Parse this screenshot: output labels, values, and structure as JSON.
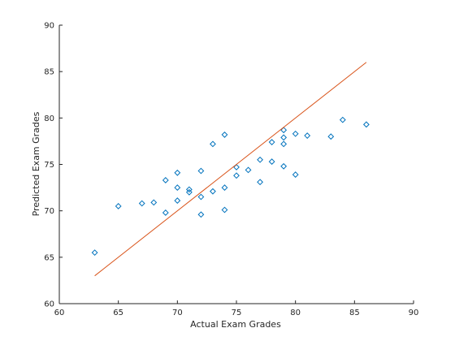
{
  "chart_data": {
    "type": "scatter",
    "title": "",
    "xlabel": "Actual Exam Grades",
    "ylabel": "Predicted Exam Grades",
    "xlim": [
      60,
      90
    ],
    "ylim": [
      60,
      90
    ],
    "xticks": [
      60,
      65,
      70,
      75,
      80,
      85,
      90
    ],
    "yticks": [
      60,
      65,
      70,
      75,
      80,
      85,
      90
    ],
    "grid": false,
    "legend": null,
    "colors": {
      "marker": "#0072BD",
      "line": "#D95319",
      "axis": "#262626"
    },
    "series": [
      {
        "kind": "scatter",
        "marker": "diamond",
        "points": [
          {
            "x": 63,
            "y": 65.5
          },
          {
            "x": 65,
            "y": 70.5
          },
          {
            "x": 67,
            "y": 70.8
          },
          {
            "x": 68,
            "y": 70.9
          },
          {
            "x": 69,
            "y": 73.3
          },
          {
            "x": 69,
            "y": 69.8
          },
          {
            "x": 70,
            "y": 74.1
          },
          {
            "x": 70,
            "y": 72.5
          },
          {
            "x": 70,
            "y": 71.1
          },
          {
            "x": 71,
            "y": 72.3
          },
          {
            "x": 71,
            "y": 72.0
          },
          {
            "x": 72,
            "y": 74.3
          },
          {
            "x": 72,
            "y": 71.5
          },
          {
            "x": 72,
            "y": 69.6
          },
          {
            "x": 73,
            "y": 77.2
          },
          {
            "x": 73,
            "y": 72.1
          },
          {
            "x": 74,
            "y": 78.2
          },
          {
            "x": 74,
            "y": 72.5
          },
          {
            "x": 74,
            "y": 70.1
          },
          {
            "x": 75,
            "y": 74.7
          },
          {
            "x": 75,
            "y": 73.8
          },
          {
            "x": 76,
            "y": 74.4
          },
          {
            "x": 77,
            "y": 75.5
          },
          {
            "x": 77,
            "y": 73.1
          },
          {
            "x": 78,
            "y": 77.4
          },
          {
            "x": 78,
            "y": 75.3
          },
          {
            "x": 79,
            "y": 78.7
          },
          {
            "x": 79,
            "y": 77.9
          },
          {
            "x": 79,
            "y": 77.2
          },
          {
            "x": 79,
            "y": 74.8
          },
          {
            "x": 80,
            "y": 78.3
          },
          {
            "x": 80,
            "y": 73.9
          },
          {
            "x": 81,
            "y": 78.1
          },
          {
            "x": 83,
            "y": 78.0
          },
          {
            "x": 84,
            "y": 79.8
          },
          {
            "x": 86,
            "y": 79.3
          }
        ]
      },
      {
        "kind": "line",
        "points": [
          {
            "x": 63,
            "y": 63
          },
          {
            "x": 86,
            "y": 86
          }
        ]
      }
    ]
  }
}
